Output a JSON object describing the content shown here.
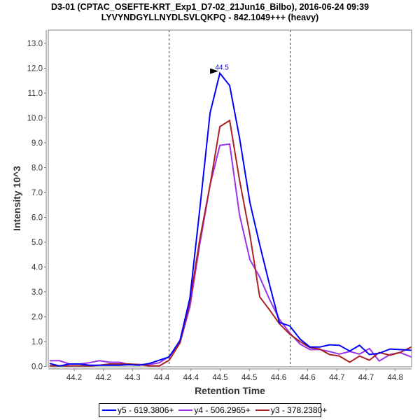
{
  "title_line1": "D3-01 (CPTAC_OSEFTE-KRT_Exp1_D7-02_21Jun16_Bilbo), 2016-06-24 09:39",
  "title_line2": "LYVYNDGYLLNYDLSVLQKPQ - 842.1049+++ (heavy)",
  "chart_data": {
    "type": "line",
    "xlabel": "Retention Time",
    "ylabel": "Intensity 10^3",
    "xlim": [
      44.1425,
      44.8084
    ],
    "ylim": [
      0,
      13.5
    ],
    "x_ticks": [
      44.19,
      44.2435,
      44.297,
      44.3505,
      44.404,
      44.4575,
      44.511,
      44.5645,
      44.618,
      44.6715,
      44.725,
      44.7785
    ],
    "x_tick_labels": [
      "44.2",
      "44.2",
      "44.3",
      "44.4",
      "44.4",
      "44.5",
      "44.5",
      "44.6",
      "44.6",
      "44.7",
      "44.7",
      "44.8"
    ],
    "y_ticks": [
      0,
      1,
      2,
      3,
      4,
      5,
      6,
      7,
      8,
      9,
      10,
      11,
      12,
      13
    ],
    "y_tick_labels": [
      "0.0",
      "1.0",
      "2.0",
      "3.0",
      "4.0",
      "5.0",
      "6.0",
      "7.0",
      "8.0",
      "9.0",
      "10.0",
      "11.0",
      "12.0",
      "13.0"
    ],
    "grid": false,
    "vertical_markers": [
      44.364,
      44.586
    ],
    "peak_annotation": {
      "x": 44.457,
      "y": 11.8,
      "label": "44.5",
      "color": "#0000cc"
    },
    "x": [
      44.145,
      44.163,
      44.181,
      44.2,
      44.218,
      44.236,
      44.255,
      44.273,
      44.291,
      44.309,
      44.328,
      44.346,
      44.364,
      44.384,
      44.402,
      44.42,
      44.439,
      44.457,
      44.475,
      44.493,
      44.512,
      44.53,
      44.548,
      44.566,
      44.585,
      44.604,
      44.622,
      44.64,
      44.658,
      44.676,
      44.695,
      44.713,
      44.731,
      44.749,
      44.769,
      44.787,
      44.808
    ],
    "series": [
      {
        "name": "y5 - 619.3806+",
        "color": "#0000ff",
        "values": [
          0.12,
          0.02,
          0.1,
          0.1,
          0.05,
          0.05,
          0.05,
          0.05,
          0.07,
          0.05,
          0.12,
          0.25,
          0.38,
          1.05,
          2.75,
          6.3,
          10.2,
          11.8,
          11.3,
          9.2,
          6.6,
          4.9,
          3.3,
          1.77,
          1.63,
          1.1,
          0.78,
          0.78,
          0.87,
          0.85,
          0.62,
          0.85,
          0.48,
          0.53,
          0.7,
          0.68,
          0.65
        ]
      },
      {
        "name": "y4 - 506.2965+",
        "color": "#9933ee",
        "values": [
          0.23,
          0.23,
          0.1,
          0.1,
          0.15,
          0.23,
          0.17,
          0.17,
          0.08,
          0.08,
          0.08,
          0.15,
          0.4,
          0.95,
          2.4,
          4.9,
          7.3,
          8.9,
          8.95,
          6.1,
          4.3,
          3.6,
          2.7,
          1.9,
          1.35,
          0.9,
          0.68,
          0.68,
          0.6,
          0.5,
          0.6,
          0.5,
          0.72,
          0.22,
          0.48,
          0.56,
          0.38
        ]
      },
      {
        "name": "y3 - 378.2380+",
        "color": "#aa2222",
        "values": [
          0.03,
          0.02,
          0.02,
          0.02,
          0.02,
          0.05,
          0.1,
          0.1,
          0.1,
          0.08,
          0.02,
          0.02,
          0.25,
          0.95,
          2.6,
          5.1,
          7.3,
          9.65,
          9.9,
          7.5,
          5.3,
          2.8,
          2.28,
          1.72,
          1.3,
          1.0,
          0.76,
          0.7,
          0.48,
          0.42,
          0.17,
          0.42,
          0.25,
          0.56,
          0.45,
          0.56,
          0.78
        ]
      }
    ]
  }
}
